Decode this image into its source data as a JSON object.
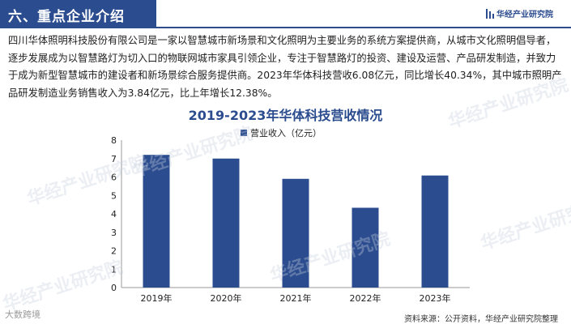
{
  "header": {
    "title": "六、重点企业介绍",
    "brand": "华经产业研究院"
  },
  "intro": "四川华体照明科技股份有限公司是一家以智慧城市新场景和文化照明为主要业务的系统方案提供商，从城市文化照明倡导者，逐步发展成为以智慧路灯为切入口的物联网城市家具引领企业，专注于智慧路灯的投资、建设及运营、产品研发制造，并致力于成为新型智慧城市的建设者和新场景综合服务提供商。2023年华体科技营收6.08亿元，同比增长40.34%，其中城市照明产品研发制造业务销售收入为3.84亿元，比上年增长12.38%。",
  "chart_data": {
    "type": "bar",
    "title": "2019-2023年华体科技营收情况",
    "categories": [
      "2019年",
      "2020年",
      "2021年",
      "2022年",
      "2023年"
    ],
    "series": [
      {
        "name": "营业收入（亿元）",
        "values": [
          7.2,
          7.0,
          5.9,
          4.33,
          6.08
        ],
        "color": "#2b4c8e"
      }
    ],
    "yticks": [
      "0",
      "1",
      "2",
      "3",
      "4",
      "5",
      "6",
      "7",
      "8"
    ],
    "ylim": [
      0,
      8
    ],
    "grid": false,
    "legend": "top-center"
  },
  "watermarks": [
    "华经产业研究院",
    "华经产业研究院",
    "华经产业研究院",
    "华经产业研究院",
    "华经产业研究院",
    "华经产业研究院"
  ],
  "footer": {
    "left_logo": "大数跨境",
    "source": "资料来源：公开资料，华经产业研究院整理"
  }
}
